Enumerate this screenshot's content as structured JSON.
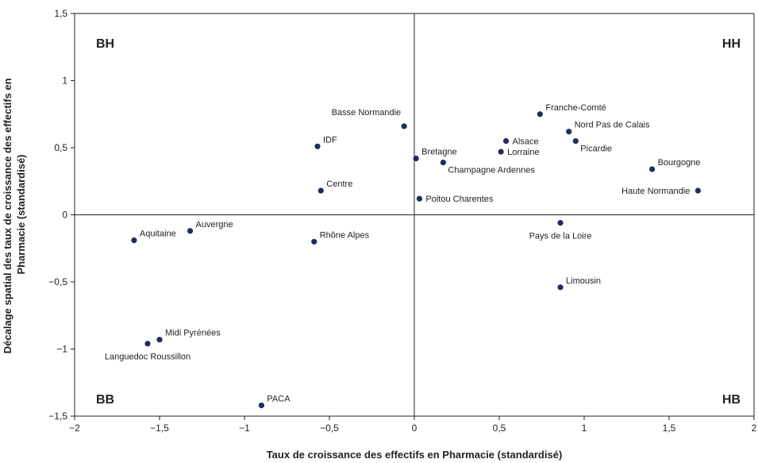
{
  "chart_data": {
    "type": "scatter",
    "xlabel": "Taux de croissance des effectifs en Pharmacie (standardisé)",
    "ylabel_lines": [
      "Décalage spatial des taux de croissance des effectifs en",
      "Pharmacie (standardisé)"
    ],
    "xlim": [
      -2,
      2
    ],
    "ylim": [
      -1.5,
      1.5
    ],
    "x_ticks": [
      -2,
      -1.5,
      -1,
      -0.5,
      0,
      0.5,
      1,
      1.5,
      2
    ],
    "y_ticks": [
      -1.5,
      -1,
      -0.5,
      0,
      0.5,
      1,
      1.5
    ],
    "x_tick_labels": [
      "−2",
      "−1,5",
      "−1",
      "−0,5",
      "0",
      "0,5",
      "1",
      "1,5",
      "2"
    ],
    "y_tick_labels": [
      "−1,5",
      "−1",
      "−0,5",
      "0",
      "0,5",
      "1",
      "1,5"
    ],
    "grid": false,
    "point_color": "#1f2d5c",
    "quadrants": [
      {
        "label": "BH",
        "pos": "top-left"
      },
      {
        "label": "HH",
        "pos": "top-right"
      },
      {
        "label": "BB",
        "pos": "bottom-left"
      },
      {
        "label": "HB",
        "pos": "bottom-right"
      }
    ],
    "points": [
      {
        "label": "Basse Normandie",
        "x": -0.06,
        "y": 0.66,
        "anchor": "tl"
      },
      {
        "label": "IDF",
        "x": -0.57,
        "y": 0.51,
        "anchor": "tr"
      },
      {
        "label": "Centre",
        "x": -0.55,
        "y": 0.18,
        "anchor": "tr"
      },
      {
        "label": "Bretagne",
        "x": 0.01,
        "y": 0.42,
        "anchor": "tr"
      },
      {
        "label": "Champagne Ardennes",
        "x": 0.17,
        "y": 0.39,
        "anchor": "br"
      },
      {
        "label": "Poitou Charentes",
        "x": 0.03,
        "y": 0.12,
        "anchor": "r"
      },
      {
        "label": "Franche-Comté",
        "x": 0.74,
        "y": 0.75,
        "anchor": "tr"
      },
      {
        "label": "Alsace",
        "x": 0.54,
        "y": 0.55,
        "anchor": "r"
      },
      {
        "label": "Lorraine",
        "x": 0.51,
        "y": 0.47,
        "anchor": "r"
      },
      {
        "label": "Nord Pas de Calais",
        "x": 0.91,
        "y": 0.62,
        "anchor": "tr"
      },
      {
        "label": "Picardie",
        "x": 0.95,
        "y": 0.55,
        "anchor": "br"
      },
      {
        "label": "Bourgogne",
        "x": 1.4,
        "y": 0.34,
        "anchor": "tr"
      },
      {
        "label": "Haute Normandie",
        "x": 1.67,
        "y": 0.18,
        "anchor": "l"
      },
      {
        "label": "Pays de la Loire",
        "x": 0.86,
        "y": -0.06,
        "anchor": "bc"
      },
      {
        "label": "Limousin",
        "x": 0.86,
        "y": -0.54,
        "anchor": "tr"
      },
      {
        "label": "Aquitaine",
        "x": -1.65,
        "y": -0.19,
        "anchor": "tr"
      },
      {
        "label": "Auvergne",
        "x": -1.32,
        "y": -0.12,
        "anchor": "tr"
      },
      {
        "label": "Rhône Alpes",
        "x": -0.59,
        "y": -0.2,
        "anchor": "tr"
      },
      {
        "label": "Midi Pyrénées",
        "x": -1.5,
        "y": -0.93,
        "anchor": "tr"
      },
      {
        "label": "Languedoc Roussillon",
        "x": -1.57,
        "y": -0.96,
        "anchor": "bc"
      },
      {
        "label": "PACA",
        "x": -0.9,
        "y": -1.42,
        "anchor": "tr"
      }
    ]
  }
}
